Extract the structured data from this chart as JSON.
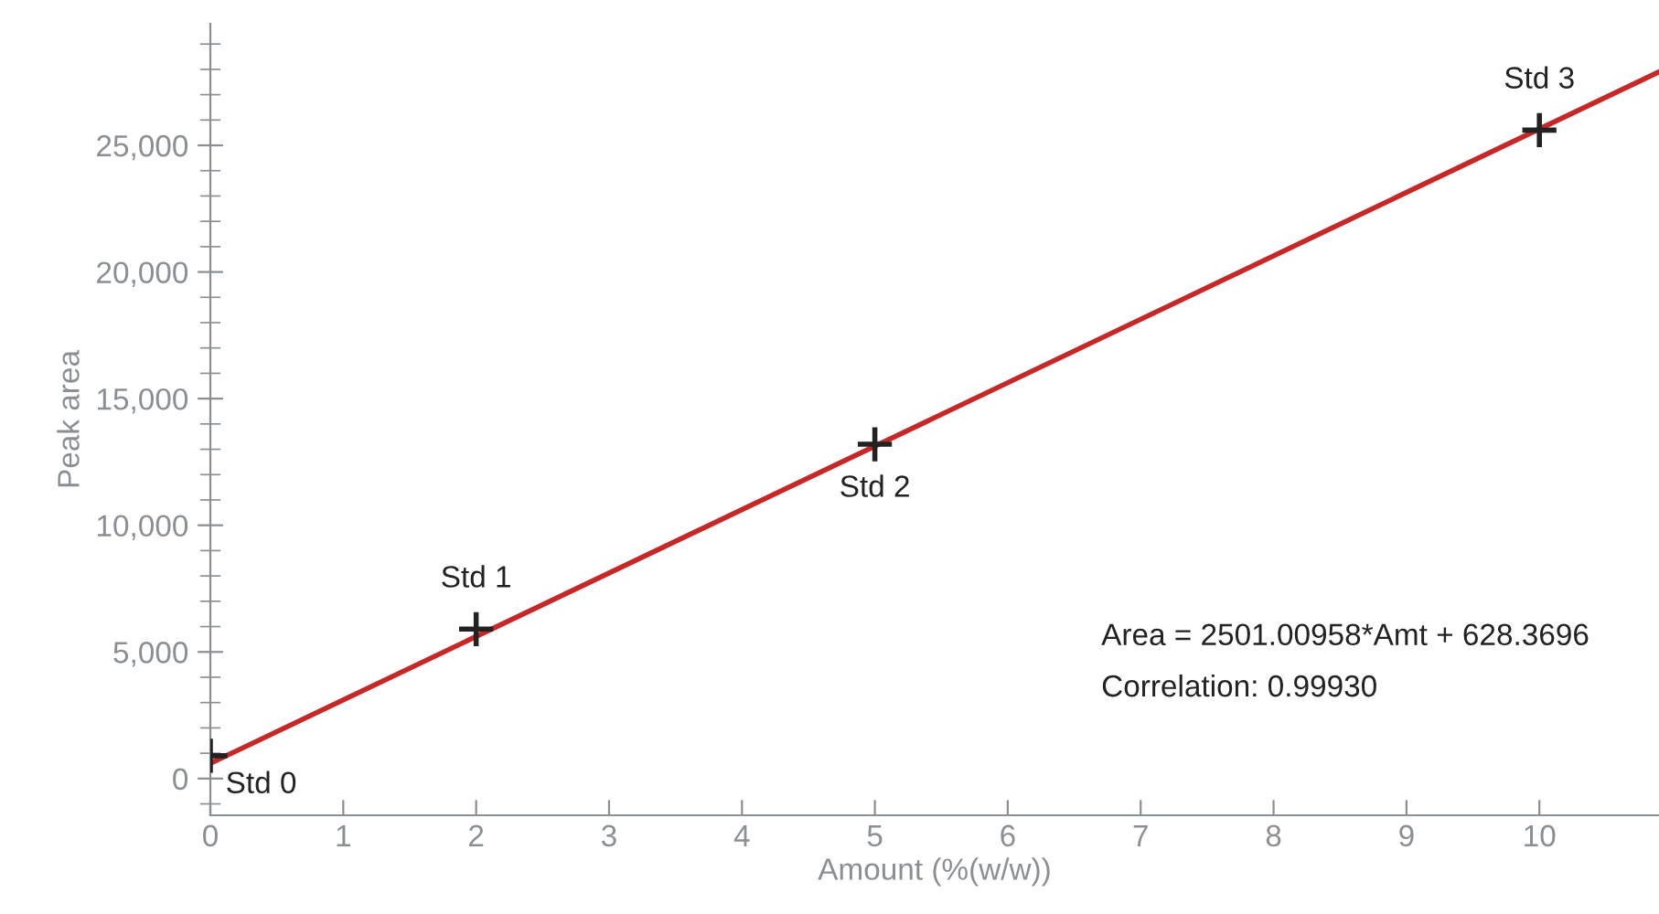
{
  "chart_data": {
    "type": "scatter",
    "xlabel": "Amount (%(w/w))",
    "ylabel": "Peak area",
    "series": [
      {
        "type": "line",
        "color": "#c62828",
        "x": [
          0,
          10.9
        ],
        "values": [
          600,
          27900
        ],
        "marker": "none"
      },
      {
        "color": "#222222",
        "x": [
          0,
          2,
          5,
          10
        ],
        "values": [
          900,
          5900,
          13200,
          25600
        ],
        "marker": "cross"
      }
    ],
    "annotations": [
      {
        "text": "Std 0",
        "x": 0,
        "y": 900
      },
      {
        "text": "Std 1",
        "x": 2,
        "y": 5900
      },
      {
        "text": "Std 2",
        "x": 5,
        "y": 13200
      },
      {
        "text": "Std 3",
        "x": 10,
        "y": 25600
      },
      "Area = 2501.00958*Amt + 628.3696",
      "Correlation: 0.99930"
    ],
    "xlim": [
      0,
      10.9
    ],
    "xticks": [
      0,
      1,
      2,
      3,
      4,
      5,
      6,
      7,
      8,
      9,
      10
    ],
    "ylim": [
      -1450,
      29800
    ],
    "yticks": [
      {
        "value": -1000,
        "label": null
      },
      {
        "value": 0,
        "label": "0"
      },
      {
        "value": 1000,
        "label": null
      },
      {
        "value": 2000,
        "label": null
      },
      {
        "value": 3000,
        "label": null
      },
      {
        "value": 4000,
        "label": null
      },
      {
        "value": 5000,
        "label": "5,000"
      },
      {
        "value": 6000,
        "label": null
      },
      {
        "value": 7000,
        "label": null
      },
      {
        "value": 8000,
        "label": null
      },
      {
        "value": 9000,
        "label": null
      },
      {
        "value": 10000,
        "label": "10,000"
      },
      {
        "value": 11000,
        "label": null
      },
      {
        "value": 12000,
        "label": null
      },
      {
        "value": 13000,
        "label": null
      },
      {
        "value": 14000,
        "label": null
      },
      {
        "value": 15000,
        "label": "15,000"
      },
      {
        "value": 16000,
        "label": null
      },
      {
        "value": 17000,
        "label": null
      },
      {
        "value": 18000,
        "label": null
      },
      {
        "value": 19000,
        "label": null
      },
      {
        "value": 20000,
        "label": "20,000"
      },
      {
        "value": 21000,
        "label": null
      },
      {
        "value": 22000,
        "label": null
      },
      {
        "value": 23000,
        "label": null
      },
      {
        "value": 24000,
        "label": null
      },
      {
        "value": 25000,
        "label": "25,000"
      },
      {
        "value": 26000,
        "label": null
      },
      {
        "value": 27000,
        "label": null
      },
      {
        "value": 28000,
        "label": null
      },
      {
        "value": 29000,
        "label": null
      }
    ],
    "grid": false
  }
}
